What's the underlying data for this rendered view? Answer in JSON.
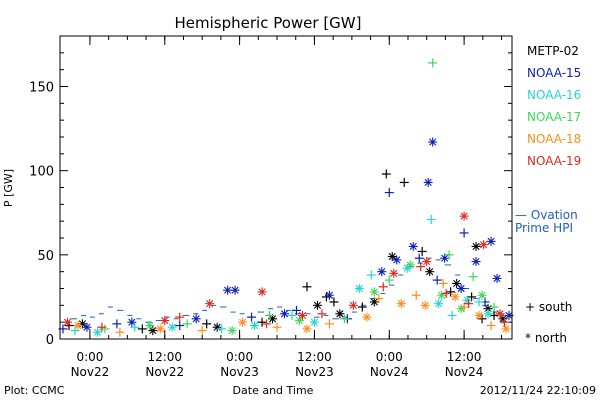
{
  "chart_data": {
    "type": "scatter",
    "title": "Hemispheric Power [GW]",
    "xlabel": "Date and Time",
    "ylabel": "P [GW]",
    "xlim": [
      -0.2,
      2.82
    ],
    "x_units": "days since Nov22 0:00",
    "ylim": [
      0,
      180
    ],
    "yticks": [
      0,
      50,
      100,
      150
    ],
    "y_minor_step": 10,
    "x_ticks": [
      {
        "x": 0.0,
        "time": "0:00",
        "date": "Nov22"
      },
      {
        "x": 0.5,
        "time": "12:00",
        "date": "Nov22"
      },
      {
        "x": 1.0,
        "time": "0:00",
        "date": "Nov23"
      },
      {
        "x": 1.5,
        "time": "12:00",
        "date": "Nov23"
      },
      {
        "x": 2.0,
        "time": "0:00",
        "date": "Nov24"
      },
      {
        "x": 2.5,
        "time": "12:00",
        "date": "Nov24"
      }
    ],
    "x_minor_step": 0.125,
    "grid": false,
    "legend_position": "right",
    "marker_legend": [
      {
        "symbol": "+",
        "label": "south"
      },
      {
        "symbol": "*",
        "label": "north"
      }
    ],
    "ovation": {
      "name": "Ovation Prime HPI",
      "label_lines": [
        "— Ovation",
        "Prime HPI"
      ],
      "color": "#1f5fbf",
      "values": [
        [
          -0.19,
          10
        ],
        [
          -0.13,
          12
        ],
        [
          -0.06,
          14
        ],
        [
          0.0,
          13
        ],
        [
          0.06,
          15
        ],
        [
          0.12,
          19
        ],
        [
          0.18,
          17
        ],
        [
          0.25,
          14
        ],
        [
          0.31,
          12
        ],
        [
          0.37,
          10
        ],
        [
          0.44,
          11
        ],
        [
          0.5,
          13
        ],
        [
          0.56,
          12
        ],
        [
          0.62,
          14
        ],
        [
          0.69,
          15
        ],
        [
          0.75,
          17
        ],
        [
          0.81,
          20
        ],
        [
          0.87,
          19
        ],
        [
          0.94,
          16
        ],
        [
          1.0,
          15
        ],
        [
          1.06,
          13
        ],
        [
          1.12,
          16
        ],
        [
          1.19,
          18
        ],
        [
          1.25,
          19
        ],
        [
          1.31,
          17
        ],
        [
          1.37,
          15
        ],
        [
          1.44,
          15
        ],
        [
          1.5,
          13
        ],
        [
          1.56,
          14
        ],
        [
          1.62,
          12
        ],
        [
          1.69,
          13
        ],
        [
          1.75,
          16
        ],
        [
          1.81,
          20
        ],
        [
          1.87,
          24
        ],
        [
          1.94,
          27
        ],
        [
          2.0,
          32
        ],
        [
          2.06,
          38
        ],
        [
          2.12,
          43
        ],
        [
          2.19,
          45
        ],
        [
          2.25,
          48
        ],
        [
          2.31,
          47
        ],
        [
          2.37,
          44
        ],
        [
          2.44,
          38
        ],
        [
          2.5,
          30
        ],
        [
          2.56,
          24
        ],
        [
          2.62,
          20
        ],
        [
          2.69,
          16
        ],
        [
          2.75,
          12
        ]
      ]
    },
    "series": [
      {
        "name": "METP-02",
        "color": "#000000",
        "south": [
          [
            -0.14,
            8
          ],
          [
            0.35,
            6
          ],
          [
            0.78,
            9
          ],
          [
            1.15,
            10
          ],
          [
            1.45,
            31
          ],
          [
            1.58,
            25
          ],
          [
            1.63,
            22
          ],
          [
            1.82,
            19
          ],
          [
            1.98,
            98
          ],
          [
            2.1,
            93
          ],
          [
            2.22,
            52
          ],
          [
            2.41,
            28
          ],
          [
            2.55,
            25
          ],
          [
            2.62,
            12
          ],
          [
            2.7,
            14
          ]
        ],
        "north": [
          [
            -0.05,
            9
          ],
          [
            0.42,
            5
          ],
          [
            0.85,
            7
          ],
          [
            1.22,
            12
          ],
          [
            1.52,
            20
          ],
          [
            1.67,
            15
          ],
          [
            1.9,
            22
          ],
          [
            2.02,
            49
          ],
          [
            2.27,
            40
          ],
          [
            2.45,
            33
          ],
          [
            2.58,
            55
          ],
          [
            2.66,
            18
          ],
          [
            2.76,
            12
          ]
        ]
      },
      {
        "name": "NOAA-15",
        "color": "#0a1fb4",
        "south": [
          [
            -0.18,
            6
          ],
          [
            0.18,
            9
          ],
          [
            0.6,
            8
          ],
          [
            1.08,
            13
          ],
          [
            1.38,
            17
          ],
          [
            1.72,
            12
          ],
          [
            2.0,
            87
          ],
          [
            2.2,
            48
          ],
          [
            2.32,
            35
          ],
          [
            2.5,
            63
          ],
          [
            2.64,
            22
          ]
        ],
        "north": [
          [
            -0.02,
            7
          ],
          [
            0.28,
            10
          ],
          [
            0.71,
            12
          ],
          [
            0.92,
            29
          ],
          [
            0.97,
            29
          ],
          [
            1.3,
            15
          ],
          [
            1.6,
            26
          ],
          [
            1.95,
            40
          ],
          [
            2.05,
            47
          ],
          [
            2.16,
            55
          ],
          [
            2.26,
            93
          ],
          [
            2.29,
            117
          ],
          [
            2.37,
            48
          ],
          [
            2.48,
            30
          ],
          [
            2.58,
            46
          ],
          [
            2.68,
            58
          ],
          [
            2.72,
            36
          ],
          [
            2.8,
            14
          ]
        ]
      },
      {
        "name": "NOAA-16",
        "color": "#2ad2d8",
        "south": [
          [
            -0.1,
            5
          ],
          [
            0.3,
            7
          ],
          [
            0.88,
            6
          ],
          [
            1.35,
            14
          ],
          [
            1.88,
            38
          ],
          [
            2.28,
            71
          ],
          [
            2.42,
            14
          ],
          [
            2.6,
            22
          ]
        ],
        "north": [
          [
            0.05,
            4
          ],
          [
            0.55,
            7
          ],
          [
            1.1,
            8
          ],
          [
            1.5,
            10
          ],
          [
            1.8,
            30
          ],
          [
            2.12,
            42
          ],
          [
            2.33,
            21
          ],
          [
            2.52,
            23
          ],
          [
            2.66,
            15
          ]
        ]
      },
      {
        "name": "NOAA-17",
        "color": "#3fd65a",
        "south": [
          [
            0.1,
            6
          ],
          [
            0.65,
            9
          ],
          [
            1.2,
            14
          ],
          [
            1.7,
            12
          ],
          [
            2.0,
            35
          ],
          [
            2.29,
            164
          ],
          [
            2.4,
            50
          ],
          [
            2.56,
            37
          ],
          [
            2.7,
            19
          ]
        ],
        "north": [
          [
            0.4,
            8
          ],
          [
            0.95,
            5
          ],
          [
            1.4,
            11
          ],
          [
            1.9,
            28
          ],
          [
            2.14,
            44
          ],
          [
            2.35,
            26
          ],
          [
            2.48,
            18
          ],
          [
            2.62,
            26
          ]
        ]
      },
      {
        "name": "NOAA-18",
        "color": "#ff8c1a",
        "south": [
          [
            0.2,
            4
          ],
          [
            0.75,
            5
          ],
          [
            1.25,
            7
          ],
          [
            1.6,
            9
          ],
          [
            1.93,
            24
          ],
          [
            2.18,
            26
          ],
          [
            2.36,
            33
          ],
          [
            2.5,
            19
          ],
          [
            2.68,
            8
          ]
        ],
        "north": [
          [
            -0.08,
            8
          ],
          [
            0.47,
            6
          ],
          [
            1.02,
            10
          ],
          [
            1.45,
            6
          ],
          [
            1.85,
            13
          ],
          [
            2.08,
            21
          ],
          [
            2.24,
            20
          ],
          [
            2.44,
            25
          ],
          [
            2.6,
            14
          ],
          [
            2.78,
            6
          ]
        ]
      },
      {
        "name": "NOAA-19",
        "color": "#e0281c",
        "south": [
          [
            0.08,
            7
          ],
          [
            0.6,
            13
          ],
          [
            1.18,
            9
          ],
          [
            1.55,
            15
          ],
          [
            1.96,
            31
          ],
          [
            2.21,
            43
          ],
          [
            2.38,
            27
          ],
          [
            2.53,
            21
          ],
          [
            2.77,
            10
          ]
        ],
        "north": [
          [
            -0.15,
            10
          ],
          [
            0.5,
            11
          ],
          [
            0.8,
            21
          ],
          [
            1.15,
            28
          ],
          [
            1.42,
            14
          ],
          [
            1.76,
            20
          ],
          [
            2.03,
            39
          ],
          [
            2.25,
            46
          ],
          [
            2.5,
            73
          ],
          [
            2.63,
            56
          ],
          [
            2.74,
            15
          ]
        ]
      }
    ]
  },
  "footer": {
    "plot_credit": "Plot: CCMC",
    "timestamp": "2012/11/24 22:10:09"
  }
}
